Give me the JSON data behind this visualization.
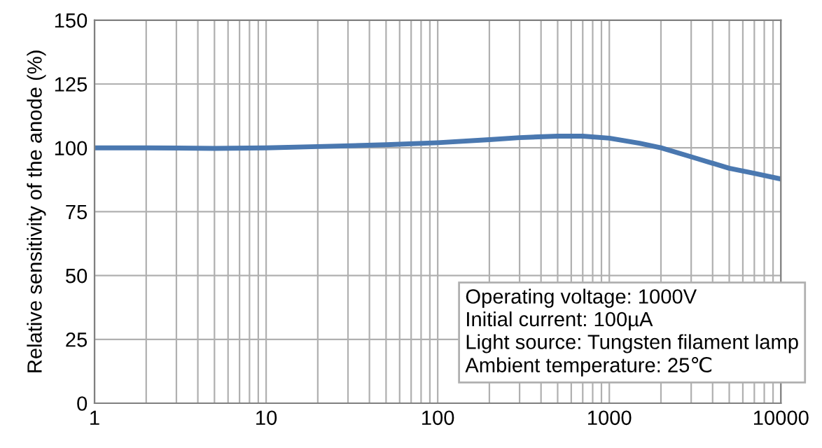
{
  "chart_data": {
    "type": "line",
    "ylabel": "Relative sensitivity of the anode (%)",
    "x": [
      1,
      2,
      5,
      10,
      20,
      50,
      100,
      200,
      300,
      500,
      700,
      1000,
      1500,
      2000,
      3000,
      5000,
      7000,
      10000
    ],
    "series": [
      {
        "color": "#4a78b0",
        "values": [
          100,
          100,
          99.8,
          100,
          100.5,
          101.2,
          102,
          103.2,
          104,
          104.6,
          104.6,
          103.8,
          101.8,
          100,
          96.5,
          92,
          90,
          87.8
        ]
      }
    ],
    "log": "x",
    "xlim": [
      1,
      10000
    ],
    "xticks": [
      1,
      10,
      100,
      1000,
      10000
    ],
    "ylim": [
      0,
      150
    ],
    "yticks": [
      0,
      25,
      50,
      75,
      100,
      125,
      150
    ],
    "grid": true,
    "marker": "none",
    "line_style": "solid",
    "annotations": [
      "Operating voltage: 1000V",
      "Initial current: 100µA",
      "Light source: Tungsten filament lamp",
      "Ambient temperature: 25℃"
    ]
  }
}
